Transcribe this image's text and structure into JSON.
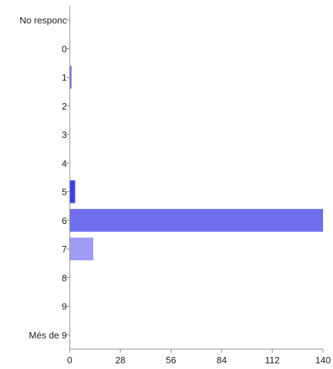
{
  "chart_data": {
    "type": "bar",
    "orientation": "horizontal",
    "title": "",
    "xlabel": "",
    "ylabel": "",
    "categories": [
      "No responc",
      "0",
      "1",
      "2",
      "3",
      "4",
      "5",
      "6",
      "7",
      "8",
      "9",
      "Més de 9"
    ],
    "values": [
      0,
      0,
      1,
      0,
      0,
      0,
      3,
      140,
      13,
      0,
      0,
      0
    ],
    "bar_colors": [
      "#6f6fee",
      "#6f6fee",
      "#6f6fee",
      "#6f6fee",
      "#6f6fee",
      "#6f6fee",
      "#3f3fe6",
      "#6f6fee",
      "#9d9df5",
      "#6f6fee",
      "#6f6fee",
      "#6f6fee"
    ],
    "xlim": [
      0,
      140
    ],
    "xticks": [
      0,
      28,
      56,
      84,
      112,
      140
    ],
    "xtick_labels": [
      "0",
      "28",
      "56",
      "84",
      "112",
      "140"
    ],
    "grid": false,
    "legend": "none"
  }
}
